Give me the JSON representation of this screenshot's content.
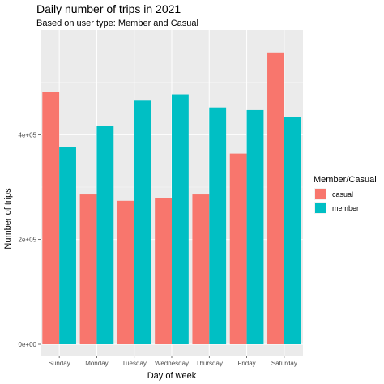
{
  "chart_data": {
    "type": "bar",
    "title": "Daily number of trips in 2021",
    "subtitle": "Based on user type: Member and Casual",
    "xlabel": "Day of week",
    "ylabel": "Number of trips",
    "categories": [
      "Sunday",
      "Monday",
      "Tuesday",
      "Wednesday",
      "Thursday",
      "Friday",
      "Saturday"
    ],
    "series": [
      {
        "name": "casual",
        "color": "#f8766d",
        "values": [
          481000,
          286000,
          274000,
          279000,
          286000,
          364000,
          557000
        ]
      },
      {
        "name": "member",
        "color": "#00bfc4",
        "values": [
          376000,
          416000,
          465000,
          477000,
          452000,
          447000,
          433000
        ]
      }
    ],
    "ylim": [
      0,
      600000
    ],
    "yticks": [
      0,
      200000,
      400000
    ],
    "ytick_labels": [
      "0e+00",
      "2e+05",
      "4e+05"
    ],
    "legend_title": "Member/Casual",
    "legend_position": "right",
    "grid": true,
    "panel_background": "#ebebeb"
  }
}
